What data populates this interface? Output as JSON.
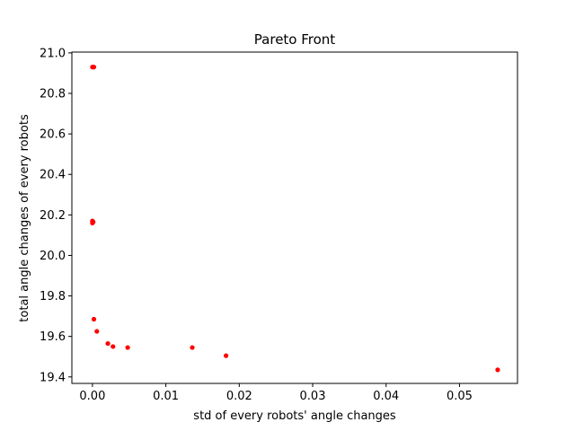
{
  "chart_data": {
    "type": "scatter",
    "title": "Pareto Front",
    "xlabel": "std of every robots' angle changes",
    "ylabel": "total angle changes of every robots",
    "xlim": [
      -0.0028,
      0.0579
    ],
    "ylim": [
      19.368,
      21.004
    ],
    "grid": false,
    "marker_color": "#ff0000",
    "x_ticks": [
      {
        "value": 0.0,
        "label": "0.00"
      },
      {
        "value": 0.01,
        "label": "0.01"
      },
      {
        "value": 0.02,
        "label": "0.02"
      },
      {
        "value": 0.03,
        "label": "0.03"
      },
      {
        "value": 0.04,
        "label": "0.04"
      },
      {
        "value": 0.05,
        "label": "0.05"
      }
    ],
    "y_ticks": [
      {
        "value": 19.4,
        "label": "19.4"
      },
      {
        "value": 19.6,
        "label": "19.6"
      },
      {
        "value": 19.8,
        "label": "19.8"
      },
      {
        "value": 20.0,
        "label": "20.0"
      },
      {
        "value": 20.2,
        "label": "20.2"
      },
      {
        "value": 20.4,
        "label": "20.4"
      },
      {
        "value": 20.6,
        "label": "20.6"
      },
      {
        "value": 20.8,
        "label": "20.8"
      },
      {
        "value": 21.0,
        "label": "21.0"
      }
    ],
    "series": [
      {
        "name": "Pareto Front",
        "x": [
          0.0,
          0.0001,
          0.0002,
          0.0,
          0.0,
          0.0001,
          0.0002,
          0.0006,
          0.0021,
          0.0028,
          0.0048,
          0.0136,
          0.0182,
          0.0552
        ],
        "y": [
          20.93,
          20.93,
          20.93,
          20.17,
          20.16,
          20.165,
          19.685,
          19.625,
          19.565,
          19.55,
          19.545,
          19.545,
          19.505,
          19.435
        ]
      }
    ]
  }
}
